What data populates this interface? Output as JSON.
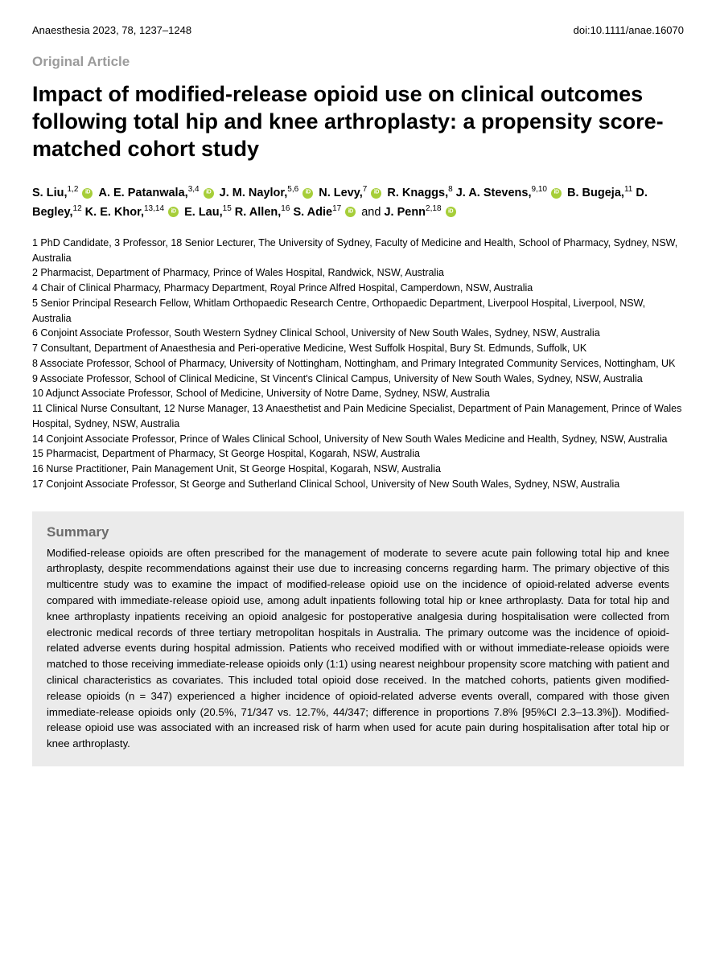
{
  "header": {
    "journal_ref": "Anaesthesia 2023, 78, 1237–1248",
    "doi": "doi:10.1111/anae.16070"
  },
  "article_type": "Original Article",
  "title": "Impact of modified-release opioid use on clinical outcomes following total hip and knee arthroplasty: a propensity score-matched cohort study",
  "authors": [
    {
      "name": "S. Liu,",
      "affil": "1,2",
      "orcid": true
    },
    {
      "name": "A. E. Patanwala,",
      "affil": "3,4",
      "orcid": true
    },
    {
      "name": "J. M. Naylor,",
      "affil": "5,6",
      "orcid": true
    },
    {
      "name": "N. Levy,",
      "affil": "7",
      "orcid": true
    },
    {
      "name": "R. Knaggs,",
      "affil": "8",
      "orcid": false
    },
    {
      "name": "J. A. Stevens,",
      "affil": "9,10",
      "orcid": true
    },
    {
      "name": "B. Bugeja,",
      "affil": "11",
      "orcid": false
    },
    {
      "name": "D. Begley,",
      "affil": "12",
      "orcid": false
    },
    {
      "name": "K. E. Khor,",
      "affil": "13,14",
      "orcid": true
    },
    {
      "name": "E. Lau,",
      "affil": "15",
      "orcid": false
    },
    {
      "name": "R. Allen,",
      "affil": "16",
      "orcid": false
    },
    {
      "name": "S. Adie",
      "affil": "17",
      "orcid": true,
      "prefix_and": false
    },
    {
      "name": "J. Penn",
      "affil": "2,18",
      "orcid": true,
      "prefix_and": true
    }
  ],
  "affiliations": [
    "1 PhD Candidate, 3 Professor, 18 Senior Lecturer, The University of Sydney, Faculty of Medicine and Health, School of Pharmacy, Sydney, NSW, Australia",
    "2 Pharmacist, Department of Pharmacy, Prince of Wales Hospital, Randwick, NSW, Australia",
    "4 Chair of Clinical Pharmacy, Pharmacy Department, Royal Prince Alfred Hospital, Camperdown, NSW, Australia",
    "5 Senior Principal Research Fellow, Whitlam Orthopaedic Research Centre, Orthopaedic Department, Liverpool Hospital, Liverpool, NSW, Australia",
    "6 Conjoint Associate Professor, South Western Sydney Clinical School, University of New South Wales, Sydney, NSW, Australia",
    "7 Consultant, Department of Anaesthesia and Peri-operative Medicine, West Suffolk Hospital, Bury St. Edmunds, Suffolk, UK",
    "8 Associate Professor, School of Pharmacy, University of Nottingham, Nottingham, and Primary Integrated Community Services, Nottingham, UK",
    "9 Associate Professor, School of Clinical Medicine, St Vincent's Clinical Campus, University of New South Wales, Sydney, NSW, Australia",
    "10 Adjunct Associate Professor, School of Medicine, University of Notre Dame, Sydney, NSW, Australia",
    "11 Clinical Nurse Consultant, 12 Nurse Manager, 13 Anaesthetist and Pain Medicine Specialist, Department of Pain Management, Prince of Wales Hospital, Sydney, NSW, Australia",
    "14 Conjoint Associate Professor, Prince of Wales Clinical School, University of New South Wales Medicine and Health, Sydney, NSW, Australia",
    "15 Pharmacist, Department of Pharmacy, St George Hospital, Kogarah, NSW, Australia",
    "16 Nurse Practitioner, Pain Management Unit, St George Hospital, Kogarah, NSW, Australia",
    "17 Conjoint Associate Professor, St George and Sutherland Clinical School, University of New South Wales, Sydney, NSW, Australia"
  ],
  "summary": {
    "heading": "Summary",
    "text": "Modified-release opioids are often prescribed for the management of moderate to severe acute pain following total hip and knee arthroplasty, despite recommendations against their use due to increasing concerns regarding harm. The primary objective of this multicentre study was to examine the impact of modified-release opioid use on the incidence of opioid-related adverse events compared with immediate-release opioid use, among adult inpatients following total hip or knee arthroplasty. Data for total hip and knee arthroplasty inpatients receiving an opioid analgesic for postoperative analgesia during hospitalisation were collected from electronic medical records of three tertiary metropolitan hospitals in Australia. The primary outcome was the incidence of opioid-related adverse events during hospital admission. Patients who received modified with or without immediate-release opioids were matched to those receiving immediate-release opioids only (1:1) using nearest neighbour propensity score matching with patient and clinical characteristics as covariates. This included total opioid dose received. In the matched cohorts, patients given modified-release opioids (n = 347) experienced a higher incidence of opioid-related adverse events overall, compared with those given immediate-release opioids only (20.5%, 71/347 vs. 12.7%, 44/347; difference in proportions 7.8% [95%CI 2.3–13.3%]). Modified-release opioid use was associated with an increased risk of harm when used for acute pain during hospitalisation after total hip or knee arthroplasty."
  },
  "colors": {
    "background": "#ffffff",
    "text": "#000000",
    "muted_text": "#9b9b9b",
    "summary_bg": "#ebebeb",
    "summary_heading": "#6b6b6b",
    "orcid_green": "#a6ce39"
  }
}
